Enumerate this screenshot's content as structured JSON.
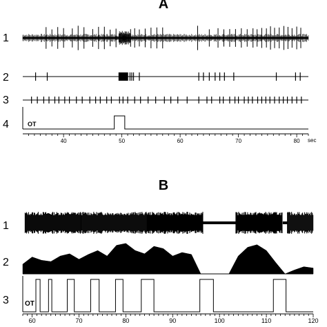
{
  "panelA": {
    "label": "A",
    "rows": [
      "1",
      "2",
      "3",
      "4"
    ],
    "ot_label": "OT",
    "unit": "sec",
    "ticks": [
      "40",
      "50",
      "60",
      "70",
      "80"
    ],
    "axis_range": [
      33,
      82
    ],
    "trace1_bursts": [
      37,
      38,
      39,
      40,
      41.5,
      42.5,
      43.5,
      45,
      46,
      47,
      48,
      49,
      51.5,
      52.2,
      53,
      54,
      55,
      56,
      57,
      63,
      65,
      66.5,
      67.5,
      68.5,
      69.5,
      70.5,
      71.5,
      72.5,
      73.2,
      74,
      74.8,
      75.5,
      76.2,
      77,
      77.8,
      78.5,
      79.2,
      80,
      80.7
    ],
    "trace1_dense": [
      49.5,
      51.5
    ],
    "trace2_spikes": [
      35.2,
      37.2,
      49.5,
      50.2,
      50.6,
      51.0,
      51.4,
      51.7,
      52.0,
      53.0,
      63.2,
      64.0,
      65.0,
      66.0,
      66.8,
      67.6,
      69.2,
      76.5,
      79.8,
      80.6
    ],
    "trace2_block": [
      49.5,
      51.0
    ],
    "trace3_spikes": [
      34.5,
      35.5,
      36.6,
      37.5,
      38.5,
      39.2,
      40.2,
      41.0,
      42.2,
      43.2,
      44.5,
      45.5,
      46.3,
      47.4,
      48.2,
      49.6,
      50.2,
      51.0,
      52.2,
      53.2,
      54.5,
      55.8,
      57.3,
      58.4,
      59.6,
      61.2,
      63.2,
      64.6,
      65.4,
      66.8,
      67.4,
      68.5,
      69.4,
      70.0,
      71.0,
      71.7,
      72.4,
      73.3,
      74.0,
      74.7,
      75.4,
      76.2,
      77.0,
      77.7,
      78.4,
      79.2,
      80.0,
      80.8
    ],
    "ot_pulses": [
      [
        48.7,
        50.5
      ]
    ]
  },
  "panelB": {
    "label": "B",
    "rows": [
      "1",
      "2",
      "3"
    ],
    "ot_label": "OT",
    "ticks": [
      "60",
      "70",
      "80",
      "90",
      "100",
      "110",
      "120"
    ],
    "axis_range": [
      58,
      120
    ],
    "trace1_segments": [
      [
        58.5,
        70.5
      ],
      [
        70.5,
        84.5
      ],
      [
        84.5,
        96.5
      ],
      [
        103.5,
        113.5
      ],
      [
        114.5,
        120
      ]
    ],
    "trace1_quiet": [
      [
        96.5,
        103.5
      ],
      [
        113.5,
        114.5
      ]
    ],
    "rate_x": [
      58,
      60,
      62,
      64,
      66,
      68,
      70,
      72,
      74,
      76,
      78,
      80,
      82,
      84,
      86,
      88,
      90,
      92,
      94,
      96,
      98,
      100,
      102,
      104,
      106,
      108,
      110,
      112,
      114,
      116,
      118,
      120
    ],
    "rate_y": [
      0.3,
      0.52,
      0.42,
      0.38,
      0.55,
      0.62,
      0.45,
      0.6,
      0.72,
      0.55,
      0.88,
      0.94,
      0.72,
      0.62,
      0.85,
      0.78,
      0.55,
      0.66,
      0.6,
      0.0,
      0.0,
      0.0,
      0.0,
      0.55,
      0.82,
      0.9,
      0.72,
      0.35,
      0.0,
      0.12,
      0.22,
      0.18
    ],
    "ot_pulses": [
      [
        60.8,
        61.7
      ],
      [
        63.5,
        64.2
      ],
      [
        67.5,
        69.0
      ],
      [
        72.5,
        74.3
      ],
      [
        77.8,
        79.4
      ],
      [
        83.3,
        86.0
      ],
      [
        95.8,
        98.7
      ],
      [
        111.5,
        114.2
      ]
    ]
  }
}
